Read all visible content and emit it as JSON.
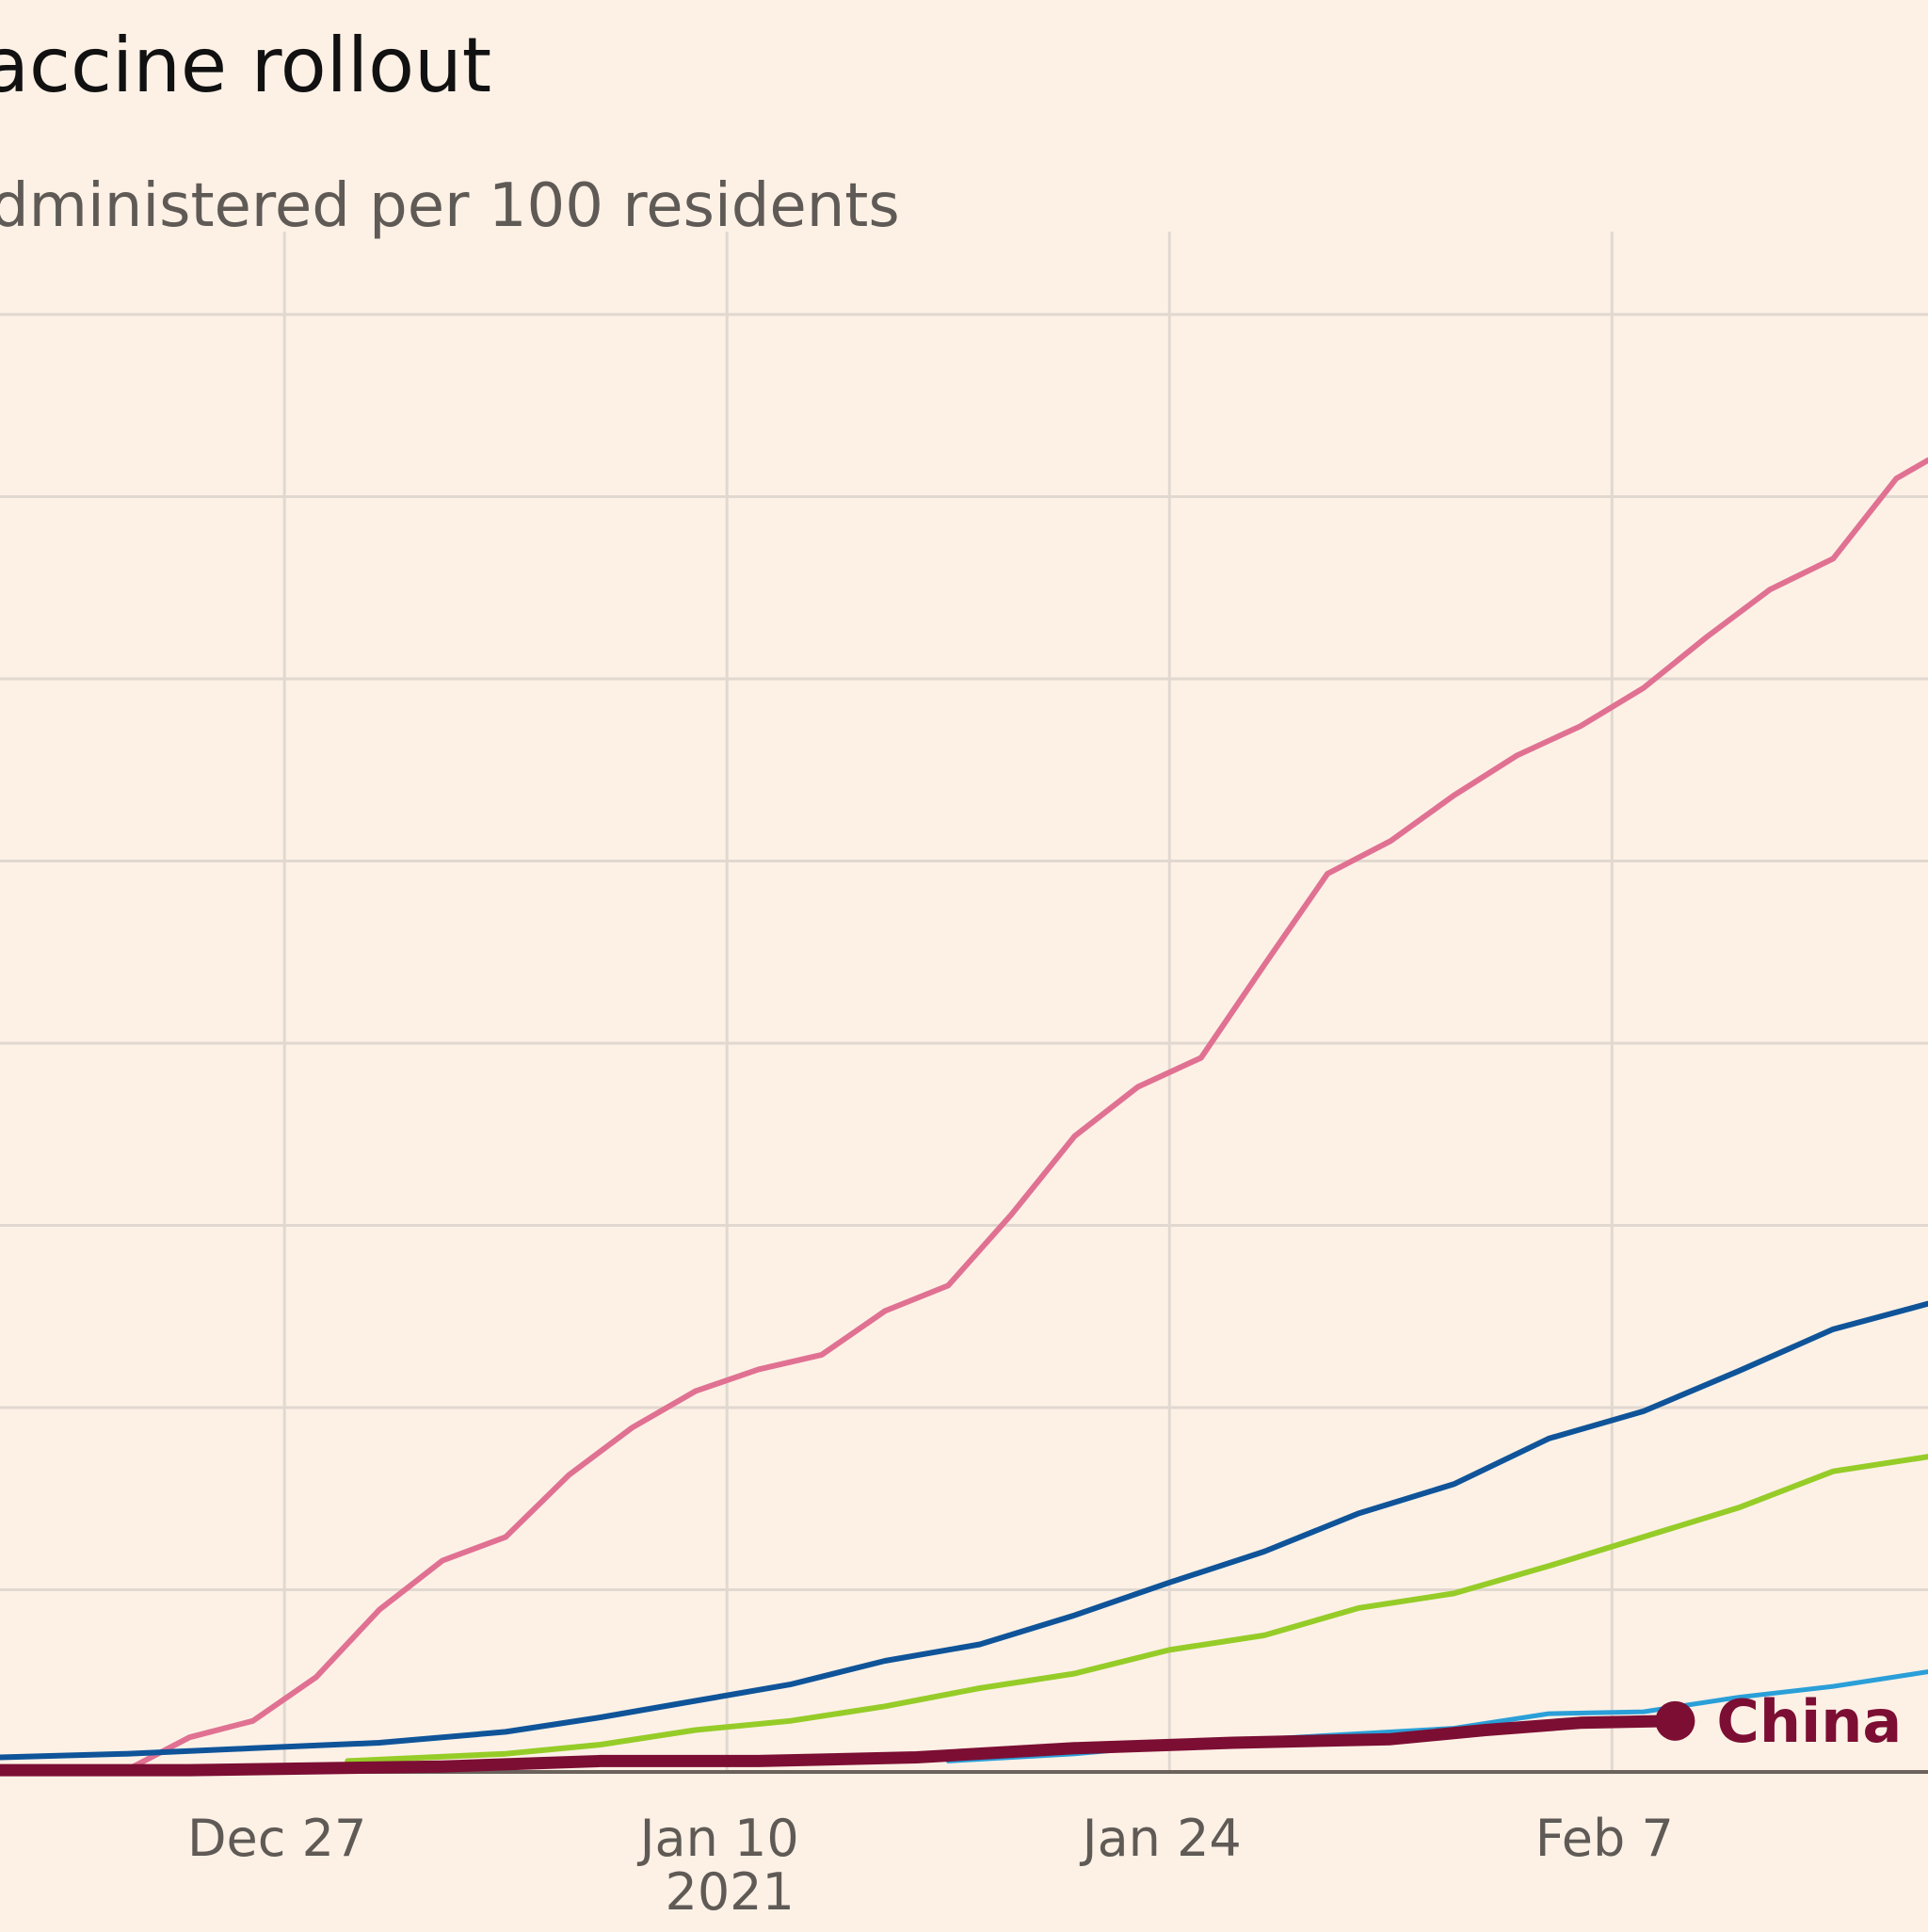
{
  "chart_data": {
    "type": "line",
    "title": "accine rollout",
    "subtitle": "dministered per 100 residents",
    "xlabel": "",
    "ylabel": "",
    "x_ticks": [
      {
        "date": "2020-12-27",
        "label": "Dec 27",
        "sublabel": ""
      },
      {
        "date": "2021-01-10",
        "label": "Jan 10",
        "sublabel": "2021"
      },
      {
        "date": "2021-01-24",
        "label": "Jan 24",
        "sublabel": ""
      },
      {
        "date": "2021-02-07",
        "label": "Feb 7",
        "sublabel": ""
      }
    ],
    "xlim": [
      "2020-12-18",
      "2021-02-17"
    ],
    "ylim": [
      0,
      80
    ],
    "y_gridlines": [
      0,
      10,
      20,
      30,
      40,
      50,
      60,
      70,
      80
    ],
    "grid": true,
    "colors": {
      "background": "#fdf1e6",
      "grid": "#e1d8d0",
      "axis": "#6b625c",
      "title": "#111111",
      "subtitle": "#5f5a55",
      "tick": "#5f5a55"
    },
    "series": [
      {
        "name": "",
        "color": "#e07192",
        "width": 6,
        "points": [
          [
            "2020-12-22",
            0.1
          ],
          [
            "2020-12-24",
            1.9
          ],
          [
            "2020-12-26",
            2.8
          ],
          [
            "2020-12-28",
            5.2
          ],
          [
            "2020-12-30",
            8.9
          ],
          [
            "2021-01-01",
            11.6
          ],
          [
            "2021-01-03",
            12.9
          ],
          [
            "2021-01-05",
            16.3
          ],
          [
            "2021-01-07",
            18.9
          ],
          [
            "2021-01-09",
            20.9
          ],
          [
            "2021-01-11",
            22.1
          ],
          [
            "2021-01-13",
            22.9
          ],
          [
            "2021-01-15",
            25.3
          ],
          [
            "2021-01-17",
            26.7
          ],
          [
            "2021-01-19",
            30.6
          ],
          [
            "2021-01-21",
            34.9
          ],
          [
            "2021-01-23",
            37.6
          ],
          [
            "2021-01-25",
            39.2
          ],
          [
            "2021-01-27",
            44.3
          ],
          [
            "2021-01-29",
            49.3
          ],
          [
            "2021-01-31",
            51.1
          ],
          [
            "2021-02-02",
            53.6
          ],
          [
            "2021-02-04",
            55.8
          ],
          [
            "2021-02-06",
            57.4
          ],
          [
            "2021-02-08",
            59.5
          ],
          [
            "2021-02-10",
            62.3
          ],
          [
            "2021-02-12",
            64.9
          ],
          [
            "2021-02-14",
            66.6
          ],
          [
            "2021-02-16",
            71.0
          ],
          [
            "2021-02-17",
            72.0
          ]
        ]
      },
      {
        "name": "",
        "color": "#0f5499",
        "width": 6,
        "points": [
          [
            "2020-12-18",
            0.8
          ],
          [
            "2020-12-22",
            1.0
          ],
          [
            "2020-12-26",
            1.3
          ],
          [
            "2020-12-30",
            1.6
          ],
          [
            "2021-01-03",
            2.2
          ],
          [
            "2021-01-06",
            3.0
          ],
          [
            "2021-01-09",
            3.9
          ],
          [
            "2021-01-12",
            4.8
          ],
          [
            "2021-01-15",
            6.1
          ],
          [
            "2021-01-18",
            7.0
          ],
          [
            "2021-01-21",
            8.6
          ],
          [
            "2021-01-24",
            10.4
          ],
          [
            "2021-01-27",
            12.1
          ],
          [
            "2021-01-30",
            14.2
          ],
          [
            "2021-02-02",
            15.8
          ],
          [
            "2021-02-05",
            18.3
          ],
          [
            "2021-02-08",
            19.8
          ],
          [
            "2021-02-11",
            22.0
          ],
          [
            "2021-02-14",
            24.3
          ],
          [
            "2021-02-17",
            25.7
          ]
        ]
      },
      {
        "name": "",
        "color": "#96cc28",
        "width": 6,
        "points": [
          [
            "2020-12-29",
            0.6
          ],
          [
            "2021-01-03",
            1.0
          ],
          [
            "2021-01-06",
            1.5
          ],
          [
            "2021-01-09",
            2.3
          ],
          [
            "2021-01-12",
            2.8
          ],
          [
            "2021-01-15",
            3.6
          ],
          [
            "2021-01-18",
            4.6
          ],
          [
            "2021-01-21",
            5.4
          ],
          [
            "2021-01-24",
            6.7
          ],
          [
            "2021-01-27",
            7.5
          ],
          [
            "2021-01-30",
            9.0
          ],
          [
            "2021-02-02",
            9.8
          ],
          [
            "2021-02-05",
            11.3
          ],
          [
            "2021-02-08",
            12.9
          ],
          [
            "2021-02-11",
            14.5
          ],
          [
            "2021-02-14",
            16.5
          ],
          [
            "2021-02-17",
            17.3
          ]
        ]
      },
      {
        "name": "",
        "color": "#2a9fd8",
        "width": 5,
        "points": [
          [
            "2021-01-17",
            0.6
          ],
          [
            "2021-01-21",
            1.0
          ],
          [
            "2021-01-25",
            1.6
          ],
          [
            "2021-01-29",
            2.0
          ],
          [
            "2021-02-02",
            2.4
          ],
          [
            "2021-02-05",
            3.2
          ],
          [
            "2021-02-08",
            3.3
          ],
          [
            "2021-02-11",
            4.1
          ],
          [
            "2021-02-14",
            4.7
          ],
          [
            "2021-02-17",
            5.5
          ]
        ]
      },
      {
        "name": "China",
        "color": "#7c0e33",
        "width": 13,
        "endpoint_marker": true,
        "points": [
          [
            "2020-12-18",
            0.1
          ],
          [
            "2020-12-24",
            0.1
          ],
          [
            "2021-01-01",
            0.3
          ],
          [
            "2021-01-06",
            0.6
          ],
          [
            "2021-01-11",
            0.6
          ],
          [
            "2021-01-16",
            0.8
          ],
          [
            "2021-01-21",
            1.3
          ],
          [
            "2021-01-26",
            1.6
          ],
          [
            "2021-01-31",
            1.8
          ],
          [
            "2021-02-03",
            2.3
          ],
          [
            "2021-02-06",
            2.7
          ],
          [
            "2021-02-09",
            2.8
          ]
        ]
      }
    ]
  }
}
